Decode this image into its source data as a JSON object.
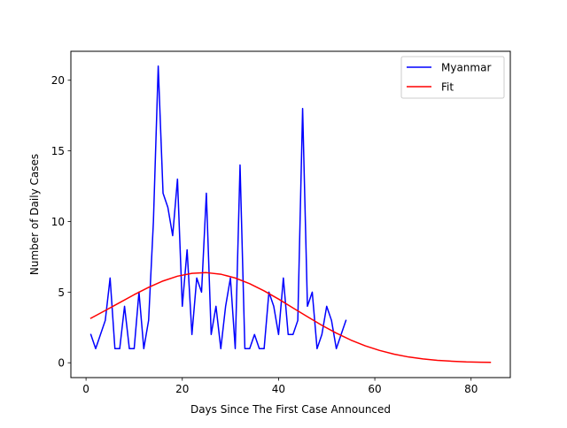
{
  "chart_data": {
    "type": "line",
    "title": "",
    "xlabel": "Days Since The First Case Announced",
    "ylabel": "Number of Daily Cases",
    "xlim": [
      -3.15,
      88.15
    ],
    "ylim": [
      -1.05,
      22.05
    ],
    "xticks": [
      0,
      20,
      40,
      60,
      80
    ],
    "yticks": [
      0,
      5,
      10,
      15,
      20
    ],
    "grid": false,
    "legend_position": "top-right",
    "series": [
      {
        "name": "Myanmar",
        "color": "#0000ff",
        "x": [
          1,
          2,
          3,
          4,
          5,
          6,
          7,
          8,
          9,
          10,
          11,
          12,
          13,
          14,
          15,
          16,
          17,
          18,
          19,
          20,
          21,
          22,
          23,
          24,
          25,
          26,
          27,
          28,
          29,
          30,
          31,
          32,
          33,
          34,
          35,
          36,
          37,
          38,
          39,
          40,
          41,
          42,
          43,
          44,
          45,
          46,
          47,
          48,
          49,
          50,
          51,
          52,
          53,
          54
        ],
        "values": [
          2,
          1,
          2,
          3,
          6,
          1,
          1,
          4,
          1,
          1,
          5,
          1,
          3,
          10,
          21,
          12,
          11,
          9,
          13,
          4,
          8,
          2,
          6,
          5,
          12,
          2,
          4,
          1,
          4,
          6,
          1,
          14,
          1,
          1,
          2,
          1,
          1,
          5,
          4,
          2,
          6,
          2,
          2,
          3,
          18,
          4,
          5,
          1,
          2,
          4,
          3,
          1,
          2,
          3
        ]
      },
      {
        "name": "Fit",
        "color": "#ff0000",
        "x": [
          1,
          4,
          7,
          10,
          13,
          16,
          19,
          22,
          25,
          28,
          31,
          34,
          37,
          40,
          43,
          46,
          49,
          52,
          55,
          58,
          61,
          64,
          67,
          70,
          73,
          76,
          79,
          82,
          84
        ],
        "values": [
          3.15,
          3.7,
          4.26,
          4.82,
          5.34,
          5.79,
          6.13,
          6.33,
          6.38,
          6.27,
          6.0,
          5.6,
          5.09,
          4.51,
          3.88,
          3.26,
          2.65,
          2.1,
          1.61,
          1.2,
          0.87,
          0.61,
          0.41,
          0.27,
          0.17,
          0.11,
          0.06,
          0.04,
          0.03
        ]
      }
    ]
  }
}
